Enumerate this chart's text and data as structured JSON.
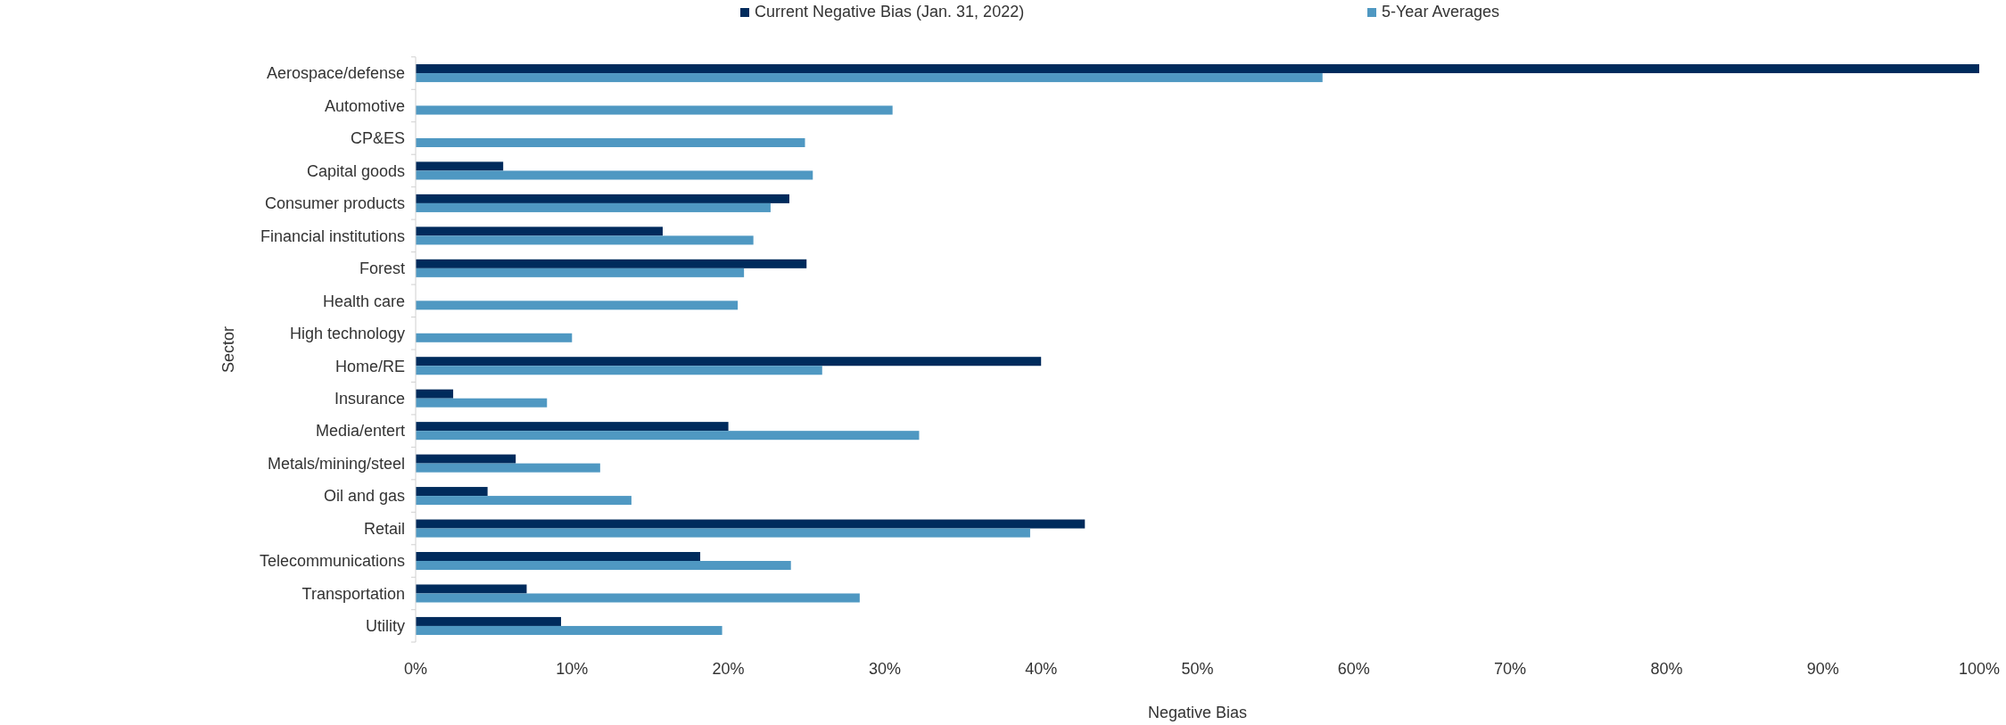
{
  "chart_data": {
    "type": "bar",
    "orientation": "horizontal",
    "xlabel": "Negative Bias",
    "ylabel": "Sector",
    "legend": "top",
    "grid": false,
    "categories": [
      "Aerospace/defense",
      "Automotive",
      "CP&ES",
      "Capital goods",
      "Consumer products",
      "Financial institutions",
      "Forest",
      "Health care",
      "High technology",
      "Home/RE",
      "Insurance",
      "Media/entert",
      "Metals/mining/steel",
      "Oil and gas",
      "Retail",
      "Telecommunications",
      "Transportation",
      "Utility"
    ],
    "series": [
      {
        "name": "Current Negative Bias (Jan. 31, 2022)",
        "color": "#002b5c",
        "values": [
          100,
          null,
          null,
          5.6,
          23.9,
          15.8,
          25.0,
          null,
          null,
          40.0,
          2.4,
          20.0,
          6.4,
          4.6,
          42.8,
          18.2,
          7.1,
          9.3
        ]
      },
      {
        "name": "5-Year Averages",
        "color": "#4f98c2",
        "values": [
          58.0,
          30.5,
          24.9,
          25.4,
          22.7,
          21.6,
          21.0,
          20.6,
          10.0,
          26.0,
          8.4,
          32.2,
          11.8,
          13.8,
          39.3,
          24.0,
          28.4,
          19.6
        ]
      }
    ],
    "xlim": [
      0,
      100
    ],
    "xticks": [
      {
        "value": 0,
        "label": "0%"
      },
      {
        "value": 10,
        "label": "10%"
      },
      {
        "value": 20,
        "label": "20%"
      },
      {
        "value": 30,
        "label": "30%"
      },
      {
        "value": 40,
        "label": "40%"
      },
      {
        "value": 50,
        "label": "50%"
      },
      {
        "value": 60,
        "label": "60%"
      },
      {
        "value": 70,
        "label": "70%"
      },
      {
        "value": 80,
        "label": "80%"
      },
      {
        "value": 90,
        "label": "90%"
      },
      {
        "value": 100,
        "label": "100%"
      }
    ]
  }
}
